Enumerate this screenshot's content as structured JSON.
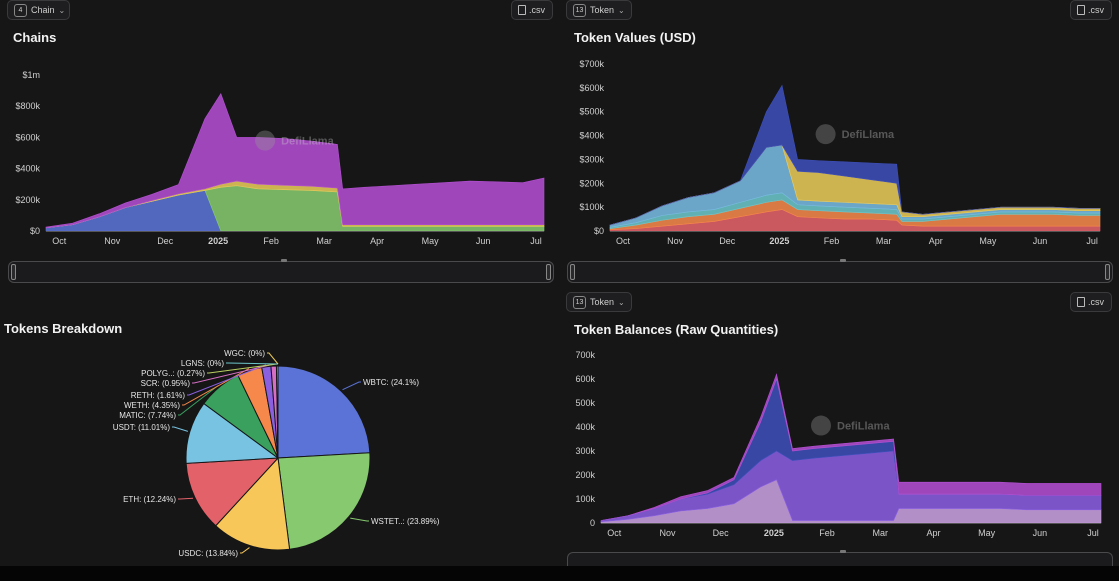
{
  "controls": {
    "chain_count": "4",
    "chain_label": "Chain",
    "token_count_top": "13",
    "token_label_top": "Token",
    "token_count_bottom": "13",
    "token_label_bottom": "Token",
    "csv_label": ".csv"
  },
  "watermark": "DefiLlama",
  "colors": {
    "purple": "#b34fd1",
    "violet": "#8a5fe0",
    "blue": "#5b73d6",
    "navy": "#3d4fb8",
    "green": "#86c96e",
    "yellow": "#e8c95a",
    "teal": "#6cc6c9",
    "lightblue": "#78b9e0",
    "red": "#e3626a",
    "orange": "#f5884a",
    "pink": "#d66fc4",
    "darkgreen": "#3aa05e"
  },
  "chart_data": [
    {
      "id": "chains",
      "type": "area",
      "title": "Chains",
      "y_ticks": [
        "$0",
        "$200k",
        "$400k",
        "$600k",
        "$800k",
        "$1m"
      ],
      "ylim": [
        0,
        1000000
      ],
      "x_ticks": [
        "Oct",
        "Nov",
        "Dec",
        "2025",
        "Feb",
        "Mar",
        "Apr",
        "May",
        "Jun",
        "Jul"
      ],
      "x": [
        0,
        0.5,
        1,
        1.5,
        2,
        2.5,
        3,
        3.3,
        3.6,
        4,
        4.5,
        5,
        5.5,
        5.6,
        6,
        6.5,
        7,
        7.5,
        8,
        8.5,
        9,
        9.4
      ],
      "series": [
        {
          "color": "#5b73d6",
          "values": [
            20000,
            40000,
            90000,
            150000,
            190000,
            230000,
            260000,
            0,
            0,
            0,
            0,
            0,
            0,
            0,
            0,
            0,
            0,
            0,
            0,
            0,
            0,
            0
          ]
        },
        {
          "color": "#86c96e",
          "values": [
            0,
            0,
            0,
            0,
            0,
            0,
            0,
            280000,
            290000,
            270000,
            265000,
            260000,
            250000,
            30000,
            30000,
            30000,
            30000,
            30000,
            30000,
            30000,
            30000,
            30000
          ]
        },
        {
          "color": "#e8c95a",
          "values": [
            0,
            0,
            0,
            0,
            5000,
            8000,
            10000,
            20000,
            30000,
            30000,
            28000,
            27000,
            25000,
            10000,
            10000,
            10000,
            10000,
            10000,
            10000,
            10000,
            10000,
            10000
          ]
        },
        {
          "color": "#b34fd1",
          "values": [
            5000,
            10000,
            20000,
            30000,
            40000,
            60000,
            450000,
            580000,
            280000,
            300000,
            300000,
            290000,
            280000,
            230000,
            240000,
            250000,
            260000,
            270000,
            280000,
            275000,
            270000,
            300000
          ]
        }
      ]
    },
    {
      "id": "token_values",
      "type": "area",
      "title": "Token Values (USD)",
      "y_ticks": [
        "$0",
        "$100k",
        "$200k",
        "$300k",
        "$400k",
        "$500k",
        "$600k",
        "$700k"
      ],
      "ylim": [
        0,
        700000
      ],
      "x_ticks": [
        "Oct",
        "Nov",
        "Dec",
        "2025",
        "Feb",
        "Mar",
        "Apr",
        "May",
        "Jun",
        "Jul"
      ],
      "x": [
        0,
        0.5,
        1,
        1.5,
        2,
        2.5,
        3,
        3.3,
        3.6,
        4,
        4.5,
        5,
        5.5,
        5.6,
        6,
        6.5,
        7,
        7.5,
        8,
        8.5,
        9,
        9.4
      ],
      "series": [
        {
          "color": "#e3626a",
          "values": [
            5000,
            10000,
            20000,
            30000,
            40000,
            60000,
            80000,
            90000,
            60000,
            55000,
            50000,
            50000,
            45000,
            25000,
            20000,
            20000,
            20000,
            20000,
            20000,
            20000,
            20000,
            20000
          ]
        },
        {
          "color": "#f5884a",
          "values": [
            5000,
            15000,
            25000,
            30000,
            30000,
            35000,
            40000,
            40000,
            30000,
            30000,
            30000,
            25000,
            25000,
            15000,
            20000,
            30000,
            40000,
            50000,
            50000,
            50000,
            45000,
            45000
          ]
        },
        {
          "color": "#6cc6c9",
          "values": [
            5000,
            10000,
            20000,
            20000,
            20000,
            25000,
            30000,
            30000,
            20000,
            20000,
            20000,
            20000,
            20000,
            10000,
            10000,
            10000,
            10000,
            10000,
            10000,
            10000,
            10000,
            10000
          ]
        },
        {
          "color": "#78b9e0",
          "values": [
            10000,
            20000,
            40000,
            60000,
            70000,
            90000,
            200000,
            200000,
            20000,
            20000,
            20000,
            20000,
            20000,
            10000,
            10000,
            10000,
            10000,
            10000,
            10000,
            10000,
            10000,
            10000
          ]
        },
        {
          "color": "#e8c95a",
          "values": [
            0,
            0,
            0,
            0,
            0,
            0,
            0,
            0,
            120000,
            120000,
            110000,
            100000,
            90000,
            20000,
            10000,
            10000,
            10000,
            10000,
            10000,
            10000,
            10000,
            10000
          ]
        },
        {
          "color": "#3d4fb8",
          "values": [
            0,
            0,
            0,
            0,
            0,
            0,
            150000,
            250000,
            50000,
            50000,
            60000,
            70000,
            80000,
            0,
            0,
            0,
            0,
            0,
            0,
            0,
            0,
            0
          ]
        }
      ]
    },
    {
      "id": "tokens_breakdown",
      "type": "pie",
      "title": "Tokens Breakdown",
      "labels": [
        "WBTC: (24.1%)",
        "WSTET..: (23.89%)",
        "USDC: (13.84%)",
        "ETH: (12.24%)",
        "USDT: (11.01%)",
        "MATIC: (7.74%)",
        "WETH: (4.35%)",
        "RETH: (1.61%)",
        "SCR: (0.95%)",
        "POLYG..: (0.27%)",
        "LGNS: (0%)",
        "WGC: (0%)"
      ],
      "values": [
        24.1,
        23.89,
        13.84,
        12.24,
        11.01,
        7.74,
        4.35,
        1.61,
        0.95,
        0.27,
        0,
        0
      ],
      "colors": [
        "#5b73d6",
        "#86c96e",
        "#f7c75a",
        "#e3626a",
        "#78c3e2",
        "#3aa05e",
        "#f5884a",
        "#8a5fe0",
        "#d66fc4",
        "#b8cf5f",
        "#6cc6c9",
        "#e8c95a"
      ]
    },
    {
      "id": "token_balances",
      "type": "area",
      "title": "Token Balances (Raw Quantities)",
      "y_ticks": [
        "0",
        "100k",
        "200k",
        "300k",
        "400k",
        "500k",
        "600k",
        "700k"
      ],
      "ylim": [
        0,
        700000
      ],
      "x_ticks": [
        "Oct",
        "Nov",
        "Dec",
        "2025",
        "Feb",
        "Mar",
        "Apr",
        "May",
        "Jun",
        "Jul"
      ],
      "x": [
        0,
        0.5,
        1,
        1.5,
        2,
        2.5,
        3,
        3.3,
        3.6,
        4,
        4.5,
        5,
        5.5,
        5.6,
        6,
        6.5,
        7,
        7.5,
        8,
        8.5,
        9,
        9.4
      ],
      "series": [
        {
          "color": "#c9a0e0",
          "values": [
            5000,
            15000,
            30000,
            50000,
            60000,
            80000,
            150000,
            180000,
            10000,
            10000,
            10000,
            10000,
            10000,
            60000,
            60000,
            60000,
            60000,
            60000,
            55000,
            55000,
            55000,
            55000
          ]
        },
        {
          "color": "#8a5fe0",
          "values": [
            5000,
            15000,
            30000,
            50000,
            60000,
            80000,
            110000,
            120000,
            250000,
            260000,
            270000,
            280000,
            290000,
            60000,
            60000,
            60000,
            60000,
            60000,
            60000,
            60000,
            60000,
            60000
          ]
        },
        {
          "color": "#3d4fb8",
          "values": [
            0,
            0,
            0,
            0,
            5000,
            20000,
            160000,
            300000,
            40000,
            40000,
            40000,
            40000,
            40000,
            0,
            0,
            0,
            0,
            0,
            0,
            0,
            0,
            0
          ]
        },
        {
          "color": "#b34fd1",
          "values": [
            0,
            0,
            5000,
            10000,
            10000,
            10000,
            20000,
            20000,
            10000,
            10000,
            10000,
            10000,
            10000,
            50000,
            50000,
            50000,
            50000,
            50000,
            50000,
            50000,
            50000,
            50000
          ]
        }
      ]
    }
  ]
}
